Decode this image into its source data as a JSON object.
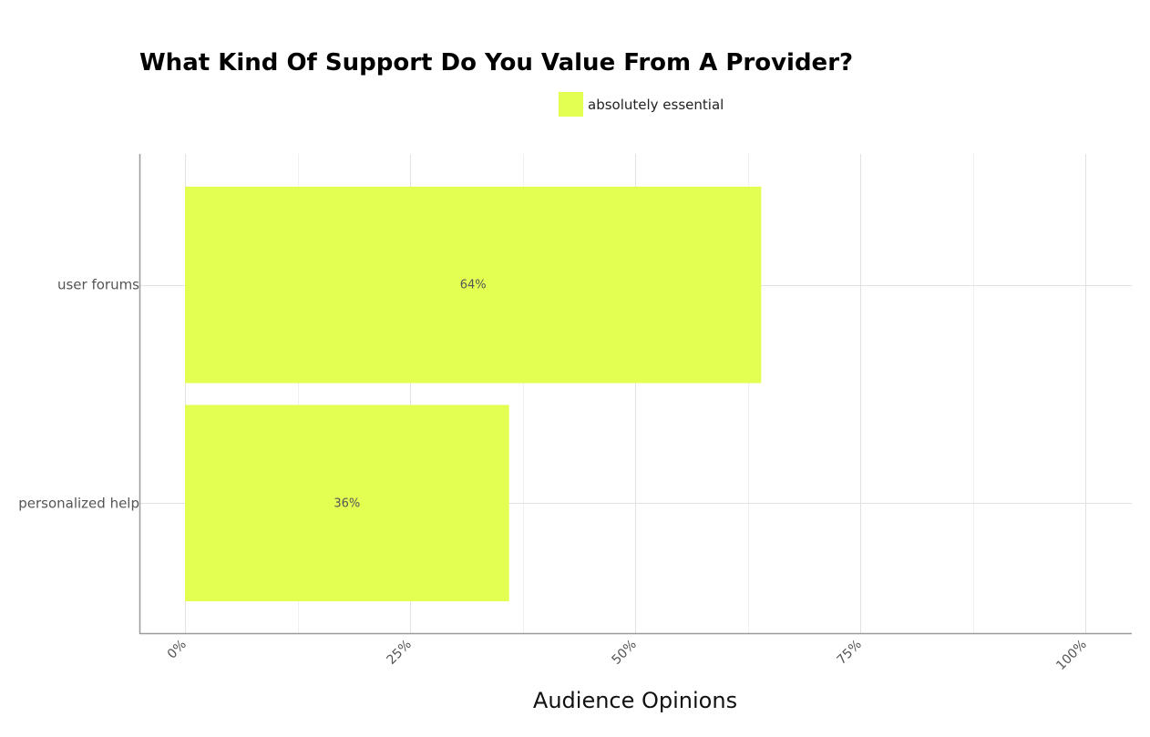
{
  "chart_data": {
    "type": "bar",
    "orientation": "horizontal",
    "title": "What Kind Of Support Do You Value From A Provider?",
    "xlabel": "Audience Opinions",
    "ylabel": "",
    "categories": [
      "user forums",
      "personalized help"
    ],
    "series": [
      {
        "name": "absolutely essential",
        "values": [
          64,
          36
        ],
        "labels": [
          "64%",
          "36%"
        ],
        "color": "#e3ff52"
      }
    ],
    "xlim": [
      0,
      100
    ],
    "x_ticks": [
      {
        "value": 0,
        "label": "0%"
      },
      {
        "value": 25,
        "label": "25%"
      },
      {
        "value": 50,
        "label": "50%"
      },
      {
        "value": 75,
        "label": "75%"
      },
      {
        "value": 100,
        "label": "100%"
      }
    ],
    "grid": true,
    "legend_position": "top-center"
  }
}
